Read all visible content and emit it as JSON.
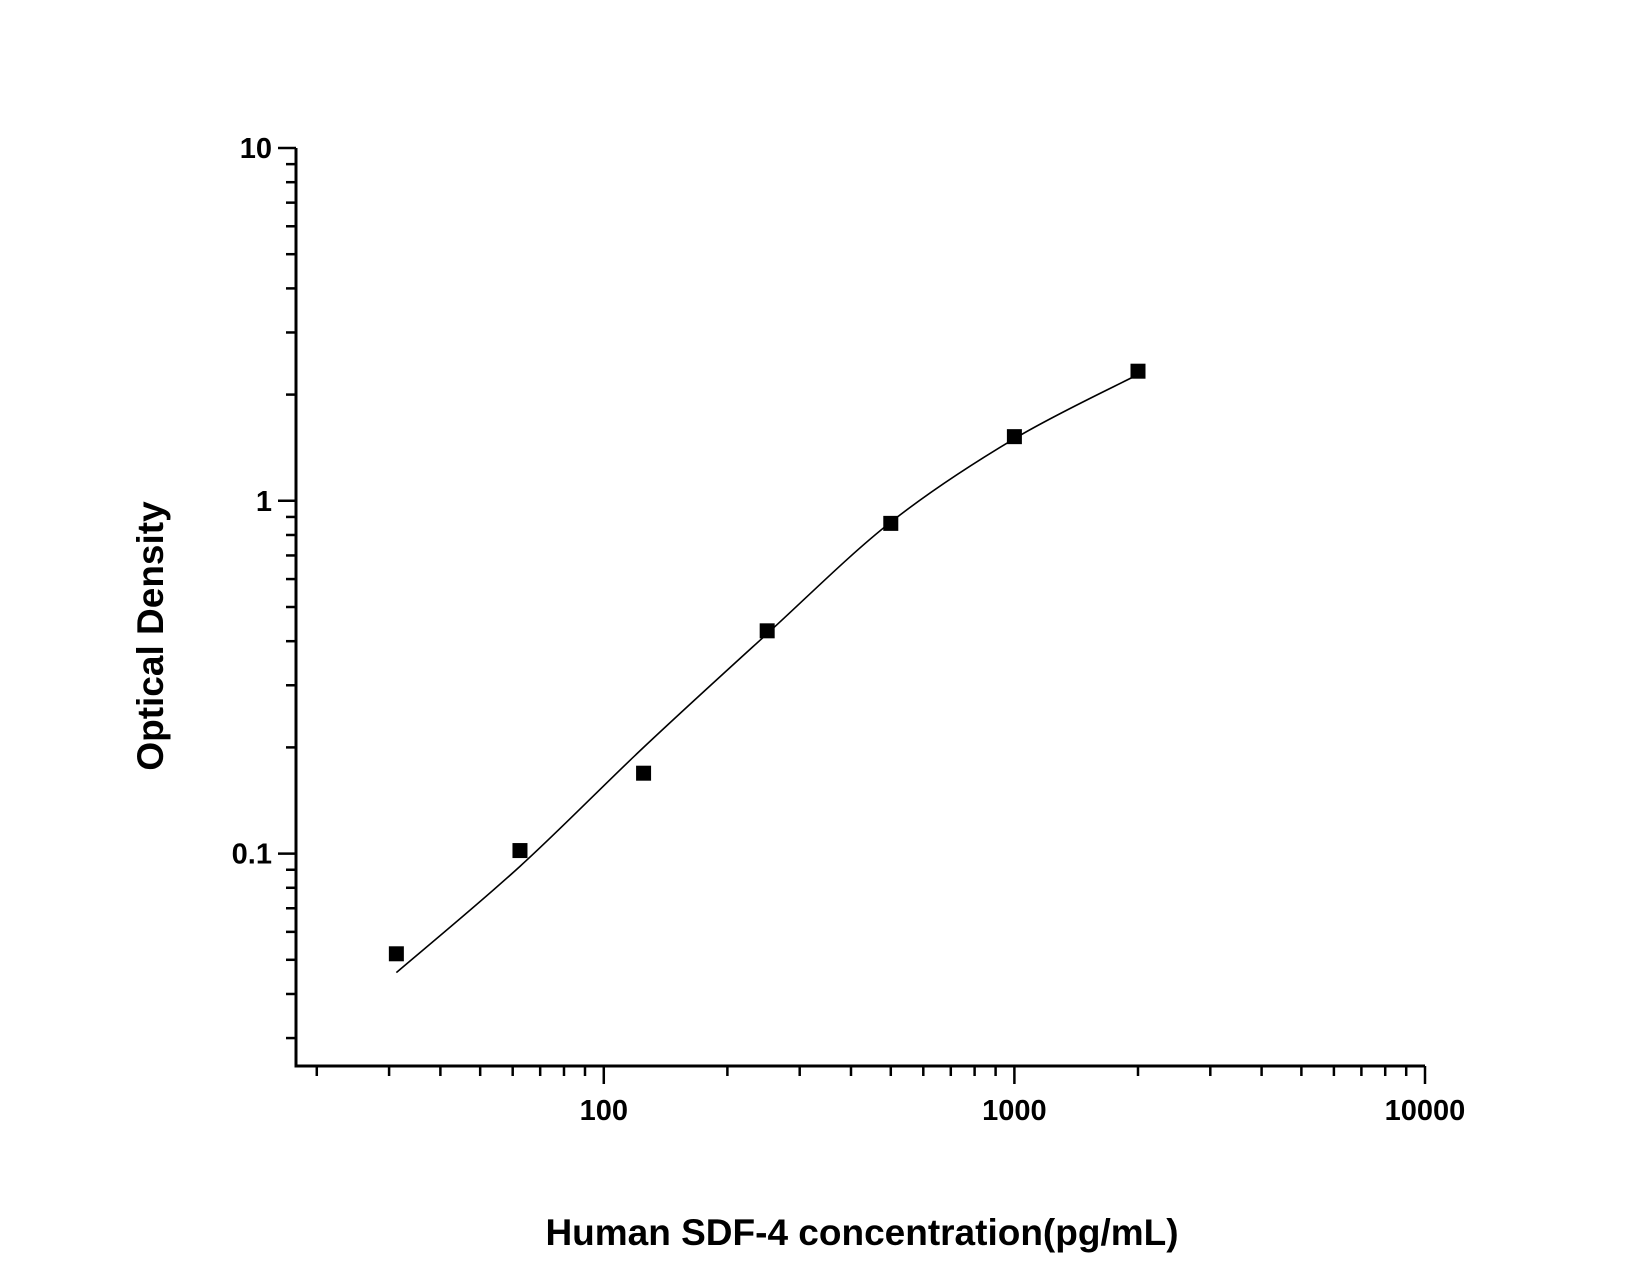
{
  "chart_data": {
    "type": "scatter",
    "title": "",
    "xlabel": "Human SDF-4 concentration(pg/mL)",
    "ylabel": "Optical Density",
    "x_scale": "log",
    "y_scale": "log",
    "xlim": [
      17.8,
      10000
    ],
    "ylim": [
      0.025,
      10
    ],
    "x_ticks": [
      {
        "value": 100,
        "label": "100"
      },
      {
        "value": 1000,
        "label": "1000"
      },
      {
        "value": 10000,
        "label": "10000"
      }
    ],
    "y_ticks": [
      {
        "value": 0.1,
        "label": "0.1"
      },
      {
        "value": 1,
        "label": "1"
      },
      {
        "value": 10,
        "label": "10"
      }
    ],
    "grid": false,
    "marker": "square",
    "color": "#000000",
    "series": [
      {
        "x": [
          31.25,
          62.5,
          125,
          250,
          500,
          1000,
          2000
        ],
        "y": [
          0.052,
          0.102,
          0.169,
          0.428,
          0.863,
          1.52,
          2.33
        ]
      }
    ],
    "fit_curve": {
      "x": [
        31.25,
        62.5,
        125,
        250,
        500,
        1000,
        2000
      ],
      "y": [
        0.046,
        0.092,
        0.2,
        0.42,
        0.87,
        1.5,
        2.28
      ]
    }
  }
}
